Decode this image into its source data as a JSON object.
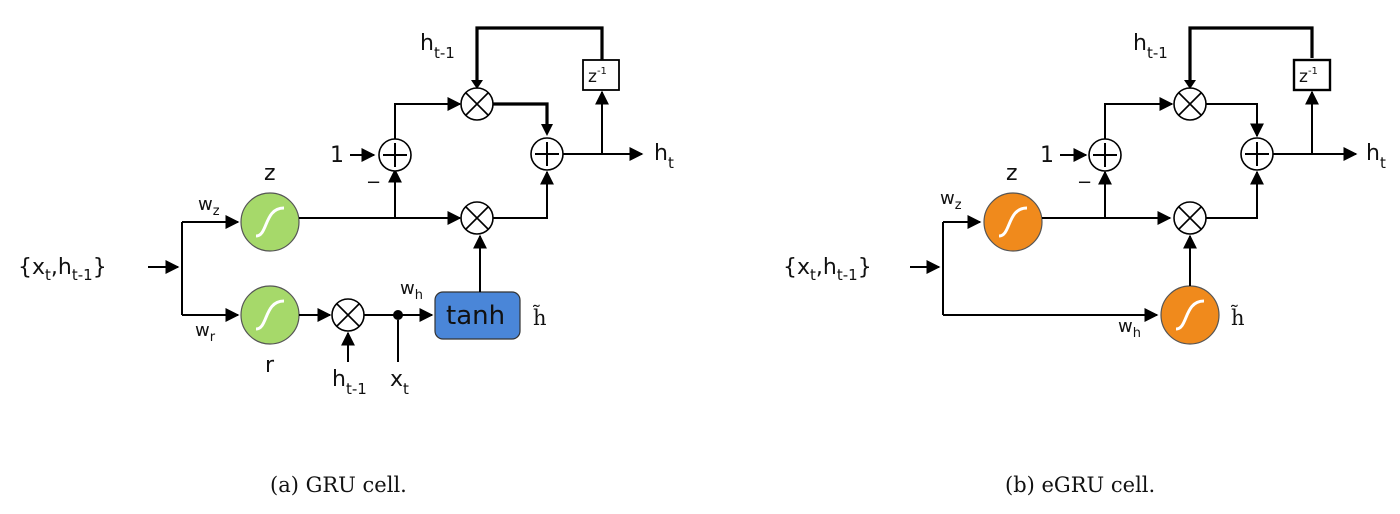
{
  "gru": {
    "input": "{x",
    "input_t": "t",
    "input_mid": ",h",
    "input_sub": "t-1",
    "input_end": "}",
    "wz": "w",
    "wz_sub": "z",
    "wr": "w",
    "wr_sub": "r",
    "wh": "w",
    "wh_sub": "h",
    "z_label": "z",
    "r_label": "r",
    "htilde": "h̃",
    "one": "1",
    "minus": "−",
    "tanh_label": "tanh",
    "delay": "z",
    "delay_sup": "-1",
    "h_prev_top": "h",
    "h_prev_top_sub": "t-1",
    "h_prev_bottom": "h",
    "h_prev_bottom_sub": "t-1",
    "x_t": "x",
    "x_t_sub": "t",
    "h_out": "h",
    "h_out_sub": "t",
    "caption": "(a) GRU cell."
  },
  "egru": {
    "input": "{x",
    "input_t": "t",
    "input_mid": ",h",
    "input_sub": "t-1",
    "input_end": "}",
    "wz": "w",
    "wz_sub": "z",
    "wh": "w",
    "wh_sub": "h",
    "z_label": "z",
    "htilde": "h̃",
    "one": "1",
    "minus": "−",
    "delay": "z",
    "delay_sup": "-1",
    "h_prev_top": "h",
    "h_prev_top_sub": "t-1",
    "h_out": "h",
    "h_out_sub": "t",
    "caption": "(b) eGRU cell."
  },
  "colors": {
    "gru_sigmoid": "#a6d96a",
    "egru_sigmoid": "#f08a1c",
    "tanh_box": "#4a86d8",
    "label_brown": "#8b5a2b",
    "wh_blue": "#3a6fc4",
    "w_orange": "#e8962c"
  },
  "icons": {
    "sigmoid": "sigmoid-curve-icon",
    "multiply": "circle-times-icon",
    "add": "circle-plus-icon",
    "delay": "delay-box-icon"
  }
}
